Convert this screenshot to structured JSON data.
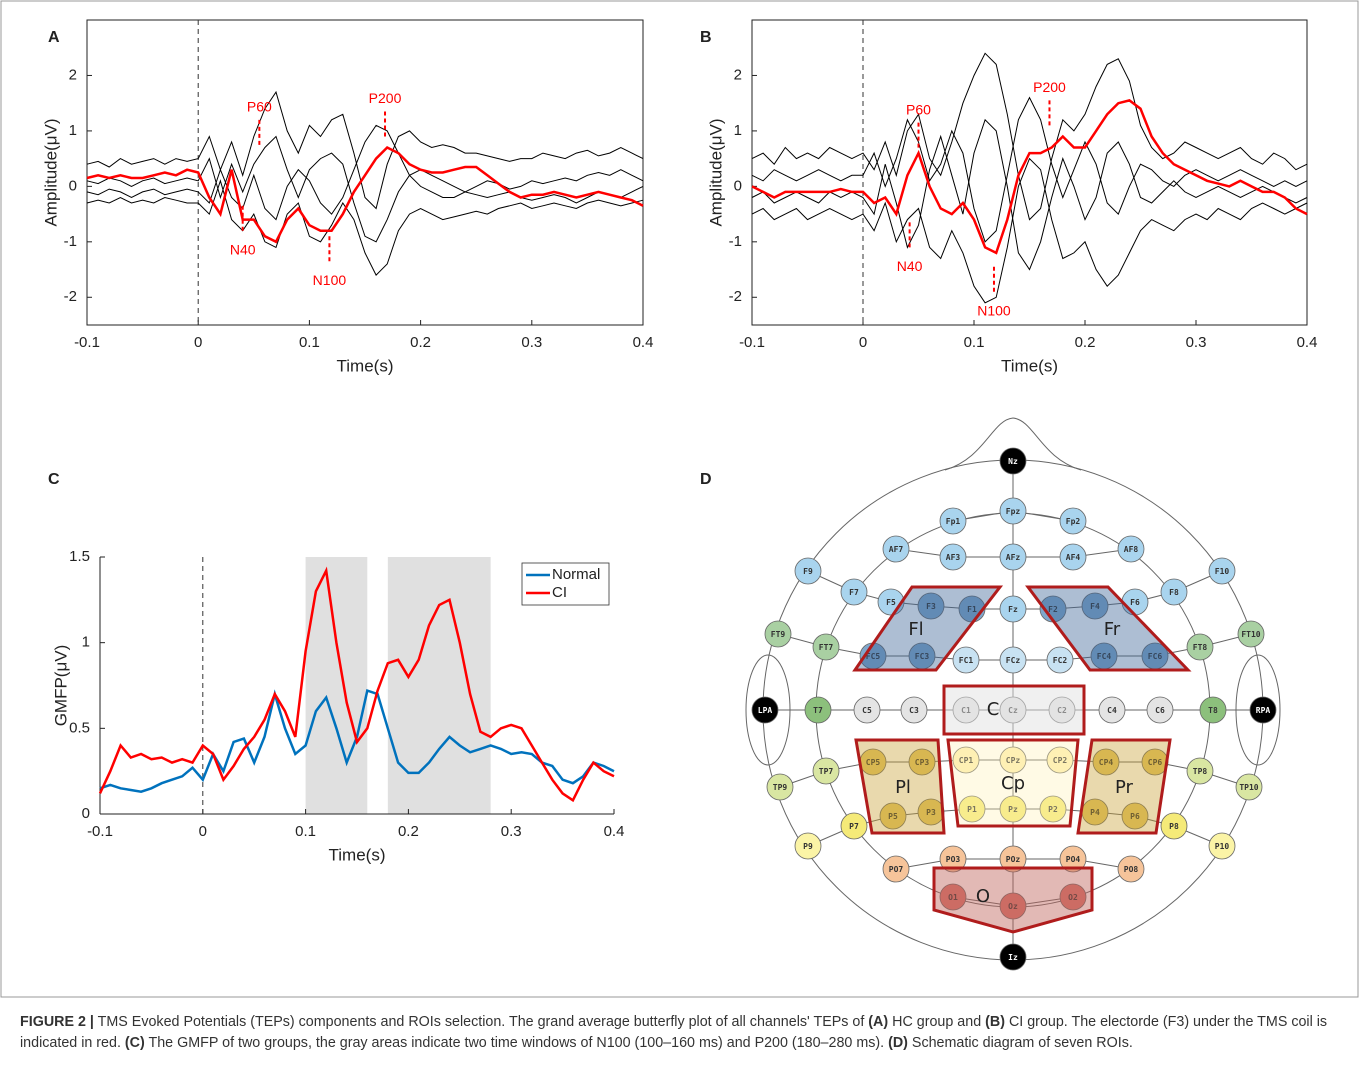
{
  "chart_data": [
    {
      "type": "line",
      "panel": "A",
      "xlabel": "Time(s)",
      "ylabel": "Amplitude(μV)",
      "xlim": [
        -0.1,
        0.4
      ],
      "ylim": [
        -2.5,
        3
      ],
      "xticks": [
        -0.1,
        0,
        0.1,
        0.2,
        0.3,
        0.4
      ],
      "yticks": [
        -2,
        -1,
        0,
        1,
        2
      ],
      "marker_x": 0,
      "x": [
        -0.1,
        -0.09,
        -0.08,
        -0.07,
        -0.06,
        -0.05,
        -0.04,
        -0.03,
        -0.02,
        -0.01,
        0,
        0.01,
        0.02,
        0.03,
        0.04,
        0.05,
        0.06,
        0.07,
        0.08,
        0.09,
        0.1,
        0.11,
        0.12,
        0.13,
        0.14,
        0.15,
        0.16,
        0.17,
        0.18,
        0.19,
        0.2,
        0.21,
        0.22,
        0.23,
        0.24,
        0.25,
        0.26,
        0.27,
        0.28,
        0.29,
        0.3,
        0.31,
        0.32,
        0.33,
        0.34,
        0.35,
        0.36,
        0.37,
        0.38,
        0.39,
        0.4
      ],
      "traces": [
        {
          "color": "#000000",
          "values": [
            0.4,
            0.45,
            0.35,
            0.5,
            0.4,
            0.45,
            0.5,
            0.4,
            0.5,
            0.45,
            0.5,
            0.9,
            0.3,
            0.8,
            0.2,
            0.9,
            1.4,
            1.7,
            1.0,
            0.6,
            1.1,
            0.9,
            1.2,
            1.3,
            0.6,
            -0.2,
            -0.4,
            0.4,
            0.9,
            1.0,
            0.8,
            0.7,
            0.75,
            0.7,
            0.6,
            0.6,
            0.55,
            0.5,
            0.45,
            0.5,
            0.5,
            0.6,
            0.55,
            0.5,
            0.6,
            0.65,
            0.55,
            0.6,
            0.7,
            0.6,
            0.5
          ]
        },
        {
          "color": "#000000",
          "values": [
            -0.3,
            -0.25,
            -0.3,
            -0.2,
            -0.3,
            -0.25,
            -0.3,
            -0.2,
            -0.25,
            -0.3,
            -0.3,
            -0.5,
            0.1,
            -0.6,
            -0.8,
            -0.5,
            -1.0,
            -1.1,
            -0.5,
            -0.3,
            -0.9,
            -1.0,
            -0.7,
            -0.3,
            -0.6,
            -1.2,
            -1.6,
            -1.4,
            -0.8,
            -0.5,
            -0.4,
            -0.5,
            -0.6,
            -0.55,
            -0.5,
            -0.45,
            -0.5,
            -0.4,
            -0.35,
            -0.3,
            -0.4,
            -0.35,
            -0.3,
            -0.35,
            -0.4,
            -0.3,
            -0.25,
            -0.3,
            -0.35,
            -0.3,
            -0.25
          ]
        },
        {
          "color": "#000000",
          "values": [
            0.1,
            0.05,
            0.15,
            0.1,
            0.0,
            0.1,
            0.15,
            0.05,
            0.1,
            0.15,
            0.1,
            0.5,
            -0.2,
            0.4,
            -0.1,
            0.4,
            0.7,
            0.9,
            0.3,
            -0.2,
            0.3,
            0.5,
            0.6,
            0.4,
            -0.3,
            -0.9,
            -1.0,
            -0.6,
            -0.1,
            0.2,
            0.3,
            0.2,
            0.1,
            0.0,
            -0.1,
            0.0,
            0.1,
            0.05,
            -0.05,
            0.0,
            0.1,
            0.05,
            0.1,
            0.15,
            0.1,
            0.2,
            0.25,
            0.2,
            0.3,
            0.2,
            0.1
          ]
        },
        {
          "color": "#000000",
          "values": [
            -0.1,
            -0.15,
            -0.05,
            -0.1,
            -0.2,
            -0.1,
            -0.05,
            -0.15,
            -0.1,
            -0.05,
            -0.1,
            -0.3,
            0.3,
            -0.2,
            -0.4,
            0.2,
            -0.4,
            -0.6,
            0.0,
            0.3,
            0.1,
            -0.3,
            -0.5,
            -0.2,
            0.3,
            0.8,
            1.1,
            1.0,
            0.6,
            0.2,
            0.0,
            -0.1,
            -0.2,
            -0.2,
            -0.1,
            -0.15,
            -0.2,
            -0.15,
            -0.1,
            -0.2,
            -0.25,
            -0.2,
            -0.15,
            -0.2,
            -0.3,
            -0.2,
            -0.1,
            -0.15,
            -0.2,
            -0.1,
            0.0
          ]
        },
        {
          "color": "#ff0000",
          "values": [
            0.15,
            0.2,
            0.15,
            0.2,
            0.15,
            0.15,
            0.2,
            0.25,
            0.2,
            0.3,
            0.25,
            -0.2,
            -0.5,
            0.3,
            -0.6,
            -0.6,
            -0.9,
            -1.0,
            -0.6,
            -0.4,
            -0.7,
            -0.8,
            -0.8,
            -0.5,
            -0.1,
            0.2,
            0.5,
            0.7,
            0.6,
            0.4,
            0.3,
            0.25,
            0.25,
            0.3,
            0.35,
            0.35,
            0.2,
            0.05,
            -0.1,
            -0.2,
            -0.15,
            -0.15,
            -0.1,
            -0.15,
            -0.2,
            -0.15,
            -0.1,
            -0.15,
            -0.2,
            -0.25,
            -0.35
          ]
        }
      ],
      "annotations": [
        {
          "label": "P60",
          "x": 0.055,
          "y": 1.2
        },
        {
          "label": "N40",
          "x": 0.04,
          "y": -0.8
        },
        {
          "label": "N100",
          "x": 0.118,
          "y": -1.35
        },
        {
          "label": "P200",
          "x": 0.168,
          "y": 1.35
        }
      ],
      "annotation_color": "#ff0000"
    },
    {
      "type": "line",
      "panel": "B",
      "xlabel": "Time(s)",
      "ylabel": "Amplitude(μV)",
      "xlim": [
        -0.1,
        0.4
      ],
      "ylim": [
        -2.5,
        3
      ],
      "xticks": [
        -0.1,
        0,
        0.1,
        0.2,
        0.3,
        0.4
      ],
      "yticks": [
        -2,
        -1,
        0,
        1,
        2
      ],
      "marker_x": 0,
      "x": [
        -0.1,
        -0.09,
        -0.08,
        -0.07,
        -0.06,
        -0.05,
        -0.04,
        -0.03,
        -0.02,
        -0.01,
        0,
        0.01,
        0.02,
        0.03,
        0.04,
        0.05,
        0.06,
        0.07,
        0.08,
        0.09,
        0.1,
        0.11,
        0.12,
        0.13,
        0.14,
        0.15,
        0.16,
        0.17,
        0.18,
        0.19,
        0.2,
        0.21,
        0.22,
        0.23,
        0.24,
        0.25,
        0.26,
        0.27,
        0.28,
        0.29,
        0.3,
        0.31,
        0.32,
        0.33,
        0.34,
        0.35,
        0.36,
        0.37,
        0.38,
        0.39,
        0.4
      ],
      "traces": [
        {
          "color": "#000000",
          "values": [
            0.5,
            0.6,
            0.4,
            0.7,
            0.5,
            0.6,
            0.5,
            0.7,
            0.6,
            0.5,
            0.6,
            0.3,
            0.8,
            0.2,
            1.0,
            1.3,
            0.5,
            0.2,
            0.8,
            1.5,
            2.0,
            2.4,
            2.2,
            1.3,
            0.2,
            -0.6,
            -0.4,
            0.5,
            1.2,
            1.0,
            1.3,
            1.8,
            2.2,
            2.3,
            1.9,
            1.1,
            0.7,
            0.5,
            0.6,
            0.8,
            0.7,
            0.6,
            0.5,
            0.6,
            0.7,
            0.5,
            0.4,
            0.6,
            0.5,
            0.3,
            0.4
          ]
        },
        {
          "color": "#000000",
          "values": [
            -0.5,
            -0.4,
            -0.6,
            -0.5,
            -0.4,
            -0.6,
            -0.5,
            -0.4,
            -0.5,
            -0.6,
            -0.5,
            -0.8,
            -0.3,
            -1.0,
            -0.6,
            -0.4,
            -1.1,
            -1.3,
            -0.8,
            -1.2,
            -1.8,
            -2.1,
            -2.0,
            -1.1,
            0.0,
            0.5,
            0.3,
            -0.6,
            -1.3,
            -1.2,
            -1.0,
            -1.5,
            -1.8,
            -1.6,
            -1.2,
            -0.8,
            -0.6,
            -0.7,
            -0.8,
            -0.6,
            -0.5,
            -0.6,
            -0.4,
            -0.5,
            -0.6,
            -0.4,
            -0.3,
            -0.4,
            -0.5,
            -0.4,
            -0.3
          ]
        },
        {
          "color": "#000000",
          "values": [
            0.2,
            0.1,
            0.3,
            0.2,
            0.1,
            0.2,
            0.3,
            0.2,
            0.1,
            0.2,
            0.2,
            0.6,
            0.0,
            0.5,
            1.2,
            0.8,
            0.1,
            0.4,
            1.0,
            0.6,
            -0.4,
            -1.0,
            -0.8,
            0.2,
            1.2,
            1.6,
            1.2,
            0.4,
            -0.2,
            0.3,
            0.8,
            0.4,
            -0.3,
            -0.5,
            0.0,
            0.4,
            0.3,
            0.1,
            0.0,
            0.2,
            0.3,
            0.2,
            0.1,
            0.2,
            0.3,
            0.2,
            0.1,
            0.0,
            0.1,
            0.0,
            0.1
          ]
        },
        {
          "color": "#000000",
          "values": [
            -0.2,
            -0.1,
            -0.3,
            -0.2,
            -0.1,
            -0.2,
            -0.3,
            -0.1,
            -0.2,
            -0.1,
            -0.2,
            -0.5,
            0.4,
            -0.3,
            -1.1,
            -0.7,
            0.3,
            0.9,
            0.2,
            -0.5,
            0.6,
            1.2,
            1.0,
            0.0,
            -1.2,
            -1.5,
            -1.0,
            -0.2,
            0.5,
            0.0,
            -0.6,
            -0.2,
            0.6,
            0.8,
            0.4,
            -0.2,
            -0.3,
            -0.1,
            0.1,
            -0.1,
            -0.2,
            -0.1,
            0.0,
            -0.1,
            -0.2,
            -0.1,
            0.0,
            -0.1,
            -0.2,
            -0.3,
            -0.2
          ]
        },
        {
          "color": "#ff0000",
          "values": [
            0.0,
            -0.1,
            -0.2,
            -0.1,
            -0.1,
            -0.1,
            -0.1,
            -0.1,
            -0.05,
            -0.1,
            -0.1,
            -0.3,
            -0.2,
            -0.5,
            0.2,
            0.6,
            0.0,
            -0.4,
            -0.5,
            -0.3,
            -0.6,
            -1.1,
            -1.2,
            -0.6,
            0.2,
            0.6,
            0.6,
            0.7,
            0.9,
            0.7,
            0.7,
            1.0,
            1.3,
            1.5,
            1.55,
            1.4,
            0.9,
            0.6,
            0.4,
            0.3,
            0.2,
            0.1,
            0.05,
            0.0,
            0.1,
            0.0,
            -0.1,
            -0.1,
            -0.2,
            -0.4,
            -0.5
          ]
        }
      ],
      "annotations": [
        {
          "label": "P60",
          "x": 0.05,
          "y": 1.15
        },
        {
          "label": "N40",
          "x": 0.042,
          "y": -1.1
        },
        {
          "label": "N100",
          "x": 0.118,
          "y": -1.9
        },
        {
          "label": "P200",
          "x": 0.168,
          "y": 1.55
        }
      ],
      "annotation_color": "#ff0000"
    },
    {
      "type": "line",
      "panel": "C",
      "xlabel": "Time(s)",
      "ylabel": "GMFP(μV)",
      "xlim": [
        -0.1,
        0.4
      ],
      "ylim": [
        0,
        1.5
      ],
      "xticks": [
        -0.1,
        0,
        0.1,
        0.2,
        0.3,
        0.4
      ],
      "yticks": [
        0,
        0.5,
        1,
        1.5
      ],
      "marker_x": 0,
      "windows": [
        [
          0.1,
          0.16
        ],
        [
          0.18,
          0.28
        ]
      ],
      "window_color": "#e0e0e0",
      "legend": "upper right",
      "x": [
        -0.1,
        -0.09,
        -0.08,
        -0.07,
        -0.06,
        -0.05,
        -0.04,
        -0.03,
        -0.02,
        -0.01,
        0,
        0.01,
        0.02,
        0.03,
        0.04,
        0.05,
        0.06,
        0.07,
        0.08,
        0.09,
        0.1,
        0.11,
        0.12,
        0.13,
        0.14,
        0.15,
        0.16,
        0.17,
        0.18,
        0.19,
        0.2,
        0.21,
        0.22,
        0.23,
        0.24,
        0.25,
        0.26,
        0.27,
        0.28,
        0.29,
        0.3,
        0.31,
        0.32,
        0.33,
        0.34,
        0.35,
        0.36,
        0.37,
        0.38,
        0.39,
        0.4
      ],
      "series": [
        {
          "name": "Normal",
          "color": "#0072bd",
          "values": [
            0.15,
            0.17,
            0.15,
            0.14,
            0.13,
            0.15,
            0.18,
            0.2,
            0.22,
            0.27,
            0.2,
            0.35,
            0.25,
            0.42,
            0.44,
            0.3,
            0.45,
            0.7,
            0.5,
            0.35,
            0.4,
            0.6,
            0.68,
            0.5,
            0.3,
            0.45,
            0.72,
            0.7,
            0.5,
            0.3,
            0.24,
            0.24,
            0.3,
            0.38,
            0.45,
            0.4,
            0.36,
            0.38,
            0.4,
            0.38,
            0.35,
            0.36,
            0.35,
            0.3,
            0.28,
            0.2,
            0.18,
            0.22,
            0.3,
            0.28,
            0.25
          ]
        },
        {
          "name": "CI",
          "color": "#ff0000",
          "values": [
            0.12,
            0.25,
            0.4,
            0.33,
            0.35,
            0.32,
            0.33,
            0.3,
            0.32,
            0.3,
            0.4,
            0.35,
            0.2,
            0.28,
            0.38,
            0.45,
            0.55,
            0.7,
            0.6,
            0.45,
            0.95,
            1.3,
            1.42,
            1.0,
            0.65,
            0.42,
            0.5,
            0.72,
            0.88,
            0.9,
            0.8,
            0.9,
            1.1,
            1.22,
            1.25,
            1.0,
            0.7,
            0.48,
            0.45,
            0.5,
            0.52,
            0.5,
            0.4,
            0.3,
            0.2,
            0.12,
            0.08,
            0.2,
            0.3,
            0.25,
            0.22
          ]
        }
      ]
    }
  ],
  "diagram": {
    "panel": "D",
    "electrodes": [
      "Nz",
      "Fp1",
      "Fpz",
      "Fp2",
      "AF7",
      "AF3",
      "AFz",
      "AF4",
      "AF8",
      "F9",
      "F7",
      "F5",
      "F3",
      "F1",
      "Fz",
      "F2",
      "F4",
      "F6",
      "F8",
      "F10",
      "FT9",
      "FT7",
      "FC5",
      "FC3",
      "FC1",
      "FCz",
      "FC2",
      "FC4",
      "FC6",
      "FT8",
      "FT10",
      "LPA",
      "T7",
      "C5",
      "C3",
      "C1",
      "Cz",
      "C2",
      "C4",
      "C6",
      "T8",
      "RPA",
      "TP9",
      "TP7",
      "CP5",
      "CP3",
      "CP1",
      "CPz",
      "CP2",
      "CP4",
      "CP6",
      "TP8",
      "TP10",
      "P9",
      "P7",
      "P5",
      "P3",
      "P1",
      "Pz",
      "P2",
      "P4",
      "P6",
      "P8",
      "P10",
      "PO7",
      "PO3",
      "POz",
      "PO4",
      "PO8",
      "O1",
      "Oz",
      "O2",
      "Iz"
    ],
    "rois": [
      "Fl",
      "Fr",
      "C",
      "Cp",
      "Pl",
      "Pr",
      "O"
    ]
  },
  "caption": {
    "label": "FIGURE 2 |",
    "parts": [
      {
        "text": " TMS Evoked Potentials (TEPs) components and ROIs selection. The grand average butterfly plot of all channels' TEPs of ",
        "bold": false
      },
      {
        "text": "(A)",
        "bold": true
      },
      {
        "text": " HC group and ",
        "bold": false
      },
      {
        "text": "(B)",
        "bold": true
      },
      {
        "text": " CI group. The electorde (F3) under the TMS coil is indicated in red. ",
        "bold": false
      },
      {
        "text": "(C)",
        "bold": true
      },
      {
        "text": " The GMFP of two groups, the gray areas indicate two time windows of N100 (100–160 ms) and P200 (180–280 ms). ",
        "bold": false
      },
      {
        "text": "(D)",
        "bold": true
      },
      {
        "text": " Schematic diagram of seven ROIs.",
        "bold": false
      }
    ]
  }
}
